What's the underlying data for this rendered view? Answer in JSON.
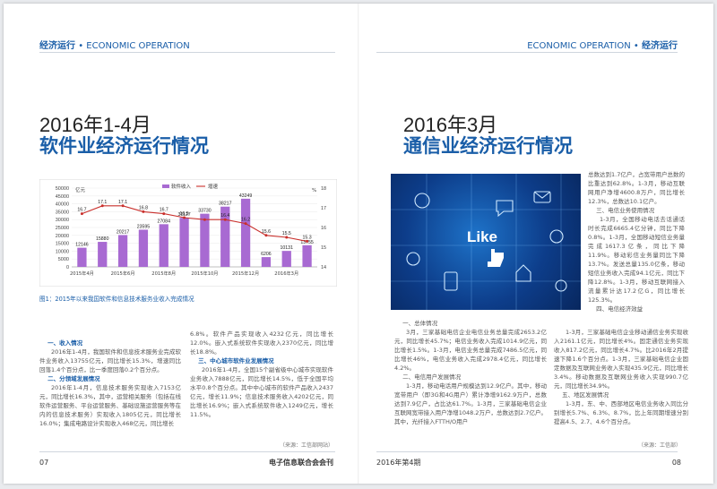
{
  "left": {
    "header_cn": "经济运行",
    "header_dot": "•",
    "header_en": "ECONOMIC OPERATION",
    "title_date": "2016年1-4月",
    "title_main": "软件业经济运行情况",
    "chart_caption": "图1：2015年以来我国软件和信息技术服务业收入完成情况",
    "col1": [
      {
        "type": "sub",
        "text": "一、收入情况"
      },
      {
        "type": "p",
        "text": "2016年1-4月，我国软件和信息技术服务业完成软件业务收入13755亿元，同比增长15.3%，增速同比回落1.4个百分点，比一季度回落0.2个百分点。"
      },
      {
        "type": "sub",
        "text": "二、分领域发展情况"
      },
      {
        "type": "p",
        "text": "2016年1-4月，信息技术服务实现收入7153亿元，同比增长16.3%，其中，运营相关服务（包括在线软件运营服务、平台运营服务、基础设施运营服务等在内的信息技术服务）实现收入1805亿元，同比增长16.0%；集成电路设计实现收入468亿元，同比增长"
      }
    ],
    "col2": [
      {
        "type": "plain",
        "text": "6.8%。软件产品实现收入4232亿元，同比增长12.0%。嵌入式系统软件实现收入2370亿元，同比增长18.8%。"
      },
      {
        "type": "sub",
        "text": "三、中心城市软件业发展情况"
      },
      {
        "type": "p",
        "text": "2016年1-4月，全国15个副省级中心城市实现软件业务收入7888亿元，同比增长14.5%，低于全国平均水平0.8个百分点。其中中心城市的软件产品收入2437亿元，增长11.9%；信息技术服务收入4202亿元，同比增长16.9%；嵌入式系统软件收入1249亿元，增长11.5%。"
      }
    ],
    "source": "（来源：工信部网站）",
    "folio": "07",
    "journal": "电子信息联合会会刊"
  },
  "right": {
    "header_en": "ECONOMIC OPERATION",
    "header_dot": "•",
    "header_cn": "经济运行",
    "title_date": "2016年3月",
    "title_main": "通信业经济运行情况",
    "photo_word": "Like",
    "col_top": [
      {
        "type": "plain",
        "text": "总数达到1.7亿户，占宽带用户总数的比重达到62.8%。1-3月，移动互联网用户净增4600.8万户，同比增长12.3%，总数达10.1亿户。"
      },
      {
        "type": "sub2",
        "text": "三、电信业务使用情况"
      },
      {
        "type": "p",
        "text": "1-3月，全国移动电话去话通话时长完成6665.4亿分钟，同比下降0.8%。1-3月，全国移动短信业务量完成1617.3亿条，同比下降11.9%。移动彩信业务量同比下降13.7%。发送总量135.0亿条，移动短信业务收入完成94.1亿元，同比下降12.8%。1-3月，移动互联网接入流量累计达17.2亿G，同比增长125.3%。"
      },
      {
        "type": "sub2",
        "text": "四、电信经济效益"
      }
    ],
    "col1": [
      {
        "type": "sub2",
        "text": "一、总体情况"
      },
      {
        "type": "p",
        "text": "3月，三家基础电信企业电信业务总量完成2653.2亿元，同比增长45.7%；电信业务收入完成1014.9亿元，同比增长1.5%。1-3月，电信业务总量完成7486.5亿元，同比增长46%，电信业务收入完成2978.4亿元，同比增长4.2%。"
      },
      {
        "type": "sub2",
        "text": "二、电信用户发展情况"
      },
      {
        "type": "p",
        "text": "1-3月，移动电话用户规模达到12.9亿户。其中，移动宽带用户（即3G和4G用户）累计净增9162.9万户，总数达到7.9亿户，占比达61.7%。1-3月，三家基础电信企业互联网宽带接入用户净增1048.2万户，总数达到2.7亿户。其中，光纤接入FTTH/O用户"
      }
    ],
    "col2": [
      {
        "type": "p",
        "text": "1-3月，三家基础电信企业移动通信业务实现收入2161.1亿元，同比增长4%。固定通信业务实现收入817.2亿元，同比增长4.7%。比2016年2月提速下降1.6个百分点。1-3月，三家基础电信企业固定数据及互联网业务收入实现435.9亿元，同比增长3.4%。移动数据及互联网业务收入实现990.7亿元，同比增长34.9%。"
      },
      {
        "type": "sub2",
        "text": "五、地区发展情况"
      },
      {
        "type": "p",
        "text": "1-3月，东、中、西部地区电信业务收入同比分别增长5.7%、6.3%、8.7%，比上年同期增速分别提高4.5、2.7、4.6个百分点。"
      }
    ],
    "source": "（来源：工信部）",
    "folio": "08",
    "journal": "2016年第4期"
  },
  "chart_data": {
    "type": "bar",
    "categories": [
      "2015年1-4月",
      "2015年1-5月",
      "2015年1-6月",
      "2015年1-7月",
      "2015年1-8月",
      "2015年1-9月",
      "2015年1-10月",
      "2015年1-11月",
      "2015年1-12月",
      "2016年1-2月",
      "2016年1-3月",
      "2016年1-4月"
    ],
    "tick_labels": [
      "2015年4月",
      "",
      "2015年6月",
      "",
      "2015年8月",
      "",
      "2015年10月",
      "",
      "2015年12月",
      "",
      "2016年3月",
      ""
    ],
    "series": [
      {
        "name": "软件收入",
        "type": "bar",
        "axis": "left",
        "values": [
          12146,
          15880,
          20217,
          23595,
          27084,
          31127,
          33730,
          38217,
          43249,
          6206,
          10131,
          13755
        ],
        "labels": [
          "12146",
          "15880",
          "20217",
          "23595",
          "27084",
          "31127",
          "33730",
          "38217",
          "43249",
          "6206",
          "10131",
          "13755"
        ]
      },
      {
        "name": "增速",
        "type": "line",
        "axis": "right",
        "values": [
          16.7,
          17.1,
          17.1,
          16.8,
          16.7,
          16.5,
          16.4,
          16.4,
          16.2,
          15.6,
          15.5,
          15.3
        ],
        "labels": [
          "16.7",
          "17.1",
          "17.1",
          "16.8",
          "16.7",
          "16.5",
          "",
          "16.4",
          "16.2",
          "15.6",
          "15.5",
          "15.3"
        ]
      }
    ],
    "ylabel_left": "亿元",
    "ylabel_right": "%",
    "ylim_left": [
      0,
      50000
    ],
    "yticks_left": [
      "0",
      "5000",
      "10000",
      "15000",
      "20000",
      "25000",
      "30000",
      "35000",
      "40000",
      "45000",
      "50000"
    ],
    "ylim_right": [
      14,
      18
    ],
    "yticks_right": [
      "14",
      "15",
      "16",
      "17",
      "18"
    ],
    "legend_position": "top-center",
    "colors": {
      "bar": "#a86ad2",
      "line": "#c9302c"
    }
  }
}
